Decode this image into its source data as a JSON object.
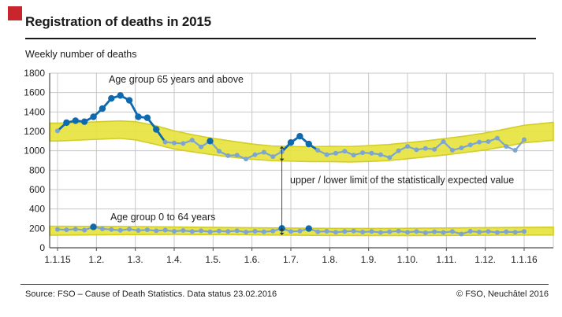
{
  "page": {
    "logo_color": "#c9252c",
    "title": "Registration of deaths in 2015",
    "subtitle": "Weekly number of deaths",
    "footer_left": "Source: FSO – Cause of Death Statistics. Data status 23.02.2016",
    "footer_right": "© FSO, Neuchâtel 2016"
  },
  "chart_data": {
    "type": "line",
    "title": "Registration of deaths in 2015",
    "ylabel": "Weekly number of deaths",
    "ylim": [
      0,
      1800
    ],
    "ytick_step": 200,
    "grid": true,
    "x_tick_labels": [
      "1.1.15",
      "1.2.",
      "1.3.",
      "1.4.",
      "1.5.",
      "1.6.",
      "1.7.",
      "1.8.",
      "1.9.",
      "1.10.",
      "1.11.",
      "1.12.",
      "1.1.16"
    ],
    "annotations": {
      "series1_label": "Age group 65 years and above",
      "series2_label": "Age group 0 to 64 years",
      "band_label": "upper / lower limit of the statistically expected value",
      "band_arrow_week": 26
    },
    "series": [
      {
        "name": "Age group 65 years and above",
        "values": [
          1205,
          1290,
          1310,
          1300,
          1350,
          1435,
          1540,
          1570,
          1520,
          1350,
          1340,
          1220,
          1090,
          1080,
          1075,
          1110,
          1040,
          1100,
          995,
          950,
          955,
          915,
          960,
          985,
          940,
          990,
          1085,
          1150,
          1070,
          1005,
          960,
          975,
          995,
          955,
          980,
          975,
          960,
          930,
          1000,
          1045,
          1010,
          1025,
          1015,
          1095,
          1005,
          1030,
          1060,
          1090,
          1095,
          1130,
          1045,
          1005,
          1115
        ],
        "outlier_weeks": [
          2,
          3,
          4,
          5,
          6,
          7,
          8,
          9,
          10,
          11,
          12,
          18,
          27,
          28,
          29
        ]
      },
      {
        "name": "Age group 0 to 64 years",
        "values": [
          190,
          185,
          192,
          182,
          215,
          195,
          188,
          180,
          192,
          178,
          185,
          175,
          182,
          170,
          178,
          168,
          175,
          165,
          172,
          168,
          175,
          162,
          170,
          165,
          172,
          200,
          168,
          172,
          198,
          165,
          170,
          160,
          168,
          172,
          162,
          168,
          158,
          165,
          172,
          160,
          168,
          155,
          165,
          158,
          168,
          142,
          170,
          162,
          168,
          158,
          165,
          160,
          168
        ],
        "outlier_weeks": [
          5,
          26,
          29
        ]
      }
    ],
    "bands": [
      {
        "series": "Age group 65 years and above",
        "points": [
          [
            -0.2,
            1285,
            1100
          ],
          [
            0,
            1285,
            1100
          ],
          [
            1,
            1298,
            1118
          ],
          [
            1.6,
            1308,
            1128
          ],
          [
            2,
            1300,
            1112
          ],
          [
            2.5,
            1262,
            1068
          ],
          [
            3,
            1205,
            1018
          ],
          [
            3.5,
            1163,
            988
          ],
          [
            4,
            1128,
            958
          ],
          [
            4.5,
            1098,
            933
          ],
          [
            5,
            1070,
            913
          ],
          [
            5.5,
            1050,
            898
          ],
          [
            6,
            1044,
            893
          ],
          [
            6.5,
            1041,
            888
          ],
          [
            7,
            1046,
            888
          ],
          [
            7.5,
            1044,
            884
          ],
          [
            8,
            1053,
            889
          ],
          [
            8.5,
            1064,
            898
          ],
          [
            9,
            1083,
            918
          ],
          [
            9.5,
            1103,
            938
          ],
          [
            10,
            1128,
            958
          ],
          [
            10.5,
            1153,
            983
          ],
          [
            11,
            1183,
            1008
          ],
          [
            11.5,
            1223,
            1043
          ],
          [
            12,
            1263,
            1083
          ],
          [
            12.75,
            1293,
            1108
          ]
        ]
      },
      {
        "series": "Age group 0 to 64 years",
        "points": [
          [
            -0.2,
            222,
            130
          ],
          [
            0,
            222,
            130
          ],
          [
            1,
            221,
            133
          ],
          [
            2,
            219,
            136
          ],
          [
            3,
            214,
            138
          ],
          [
            4,
            210,
            136
          ],
          [
            5,
            206,
            133
          ],
          [
            6,
            203,
            130
          ],
          [
            7,
            200,
            127
          ],
          [
            8,
            199,
            126
          ],
          [
            9,
            201,
            126
          ],
          [
            10,
            204,
            127
          ],
          [
            11,
            207,
            129
          ],
          [
            12,
            210,
            131
          ],
          [
            12.75,
            212,
            132
          ]
        ]
      }
    ],
    "colors": {
      "line": "#7da5d2",
      "outlier": "#0f69af",
      "band": "#e7e33f",
      "band_edge": "#d3cd27",
      "grid": "#c8c8c8",
      "axis": "#4d4d4d",
      "annotation": "#333333"
    },
    "legend_position": "none"
  }
}
